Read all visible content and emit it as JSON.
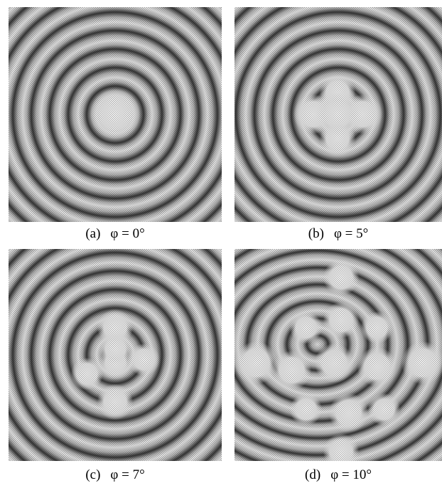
{
  "panels": [
    {
      "label": "(a)",
      "caption": "φ = 0°"
    },
    {
      "label": "(b)",
      "caption": "φ = 5°"
    },
    {
      "label": "(c)",
      "caption": "φ = 7°"
    },
    {
      "label": "(d)",
      "caption": "φ = 10°"
    }
  ]
}
